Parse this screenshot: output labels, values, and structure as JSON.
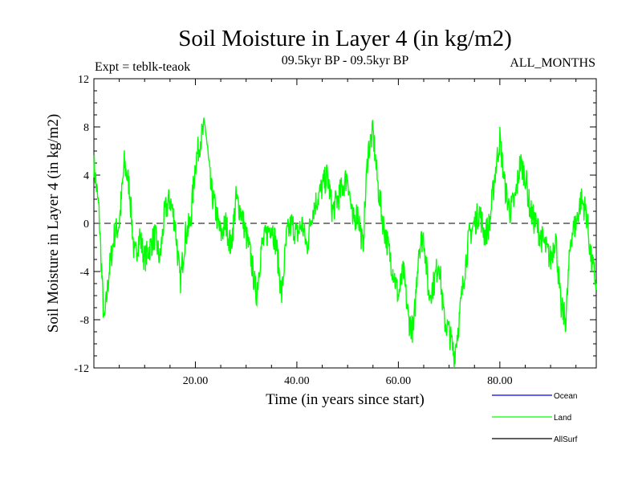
{
  "chart_data": {
    "type": "line",
    "title": "Soil Moisture in Layer 4 (in kg/m2)",
    "subtitle": "09.5kyr BP - 09.5kyr BP",
    "experiment": "Expt = teblk-teaok",
    "period": "ALL_MONTHS",
    "xlabel": "Time (in years since start)",
    "ylabel": "Soil Moisture in Layer 4 (in kg/m2)",
    "xlim": [
      0,
      99
    ],
    "ylim": [
      -12,
      12
    ],
    "xticks": [
      20,
      40,
      60,
      80
    ],
    "xtick_labels": [
      "20.00",
      "40.00",
      "60.00",
      "80.00"
    ],
    "yticks": [
      -12,
      -8,
      -4,
      0,
      4,
      8,
      12
    ],
    "ytick_labels": [
      "-12",
      "-8",
      "-4",
      "0",
      "4",
      "8",
      "12"
    ],
    "zero_line": "dashed",
    "legend": [
      {
        "name": "Ocean",
        "color": "#0000ff"
      },
      {
        "name": "Land",
        "color": "#00ff00"
      },
      {
        "name": "AllSurf",
        "color": "#000000"
      }
    ],
    "series": [
      {
        "name": "Land",
        "color": "#00ff00",
        "x": [
          0,
          1,
          2,
          3,
          4,
          5,
          6,
          7,
          8,
          9,
          10,
          11,
          12,
          13,
          14,
          15,
          16,
          17,
          18,
          19,
          20,
          21,
          22,
          23,
          24,
          25,
          26,
          27,
          28,
          29,
          30,
          31,
          32,
          33,
          34,
          35,
          36,
          37,
          38,
          39,
          40,
          41,
          42,
          43,
          44,
          45,
          46,
          47,
          48,
          49,
          50,
          51,
          52,
          53,
          54,
          55,
          56,
          57,
          58,
          59,
          60,
          61,
          62,
          63,
          64,
          65,
          66,
          67,
          68,
          69,
          70,
          71,
          72,
          73,
          74,
          75,
          76,
          77,
          78,
          79,
          80,
          81,
          82,
          83,
          84,
          85,
          86,
          87,
          88,
          89,
          90,
          91,
          92,
          93,
          94,
          95,
          96,
          97,
          98,
          99
        ],
        "values": [
          5,
          1,
          -8.5,
          -4,
          -1,
          0,
          5,
          3,
          -3,
          -1,
          -3,
          -2,
          -1,
          -3,
          1,
          2,
          0,
          -5,
          -1,
          0,
          5,
          7,
          8,
          3,
          1,
          -1,
          0,
          -2,
          2,
          1,
          -1,
          -3,
          -6,
          -2,
          -1,
          0,
          -2,
          -6,
          -1,
          0,
          -1,
          0,
          -2,
          1,
          2,
          3,
          4,
          1,
          2,
          3,
          4,
          0,
          1,
          -2,
          6,
          7.5,
          3,
          0,
          -2,
          -4,
          -6,
          -4,
          -8,
          -9,
          -2,
          -1,
          -6,
          -5,
          -3,
          -8,
          -9,
          -11,
          -8,
          -4,
          -1,
          0,
          1,
          -1,
          0,
          4,
          7,
          3,
          1,
          2,
          5,
          4,
          1,
          0,
          -1,
          -2,
          -3,
          -1,
          -7,
          -8,
          -1,
          0,
          2,
          1,
          -3,
          -5
        ]
      }
    ]
  }
}
